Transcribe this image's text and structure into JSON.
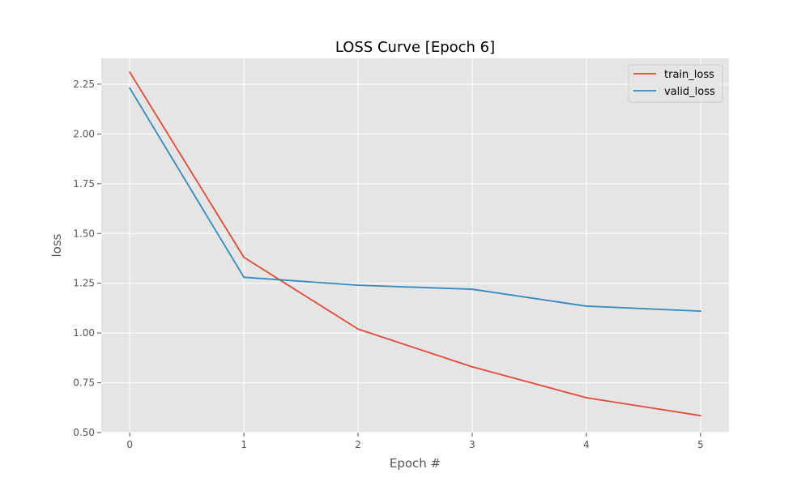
{
  "chart_data": {
    "type": "line",
    "title": "LOSS Curve [Epoch 6]",
    "xlabel": "Epoch #",
    "ylabel": "loss",
    "x": [
      0,
      1,
      2,
      3,
      4,
      5
    ],
    "xlim": [
      -0.25,
      5.25
    ],
    "ylim": [
      0.5,
      2.38
    ],
    "xticks": [
      0,
      1,
      2,
      3,
      4,
      5
    ],
    "yticks": [
      0.5,
      0.75,
      1.0,
      1.25,
      1.5,
      1.75,
      2.0,
      2.25
    ],
    "xtick_labels": [
      "0",
      "1",
      "2",
      "3",
      "4",
      "5"
    ],
    "ytick_labels": [
      "0.50",
      "0.75",
      "1.00",
      "1.25",
      "1.50",
      "1.75",
      "2.00",
      "2.25"
    ],
    "grid": true,
    "legend_position": "top-right",
    "series": [
      {
        "name": "train_loss",
        "color": "#e24a33",
        "values": [
          2.31,
          1.38,
          1.02,
          0.83,
          0.675,
          0.585
        ]
      },
      {
        "name": "valid_loss",
        "color": "#348abd",
        "values": [
          2.23,
          1.28,
          1.24,
          1.22,
          1.135,
          1.11
        ]
      }
    ],
    "style": {
      "plot_bg": "#e5e5e5",
      "grid_color": "#ffffff",
      "tick_color": "#555555"
    }
  }
}
